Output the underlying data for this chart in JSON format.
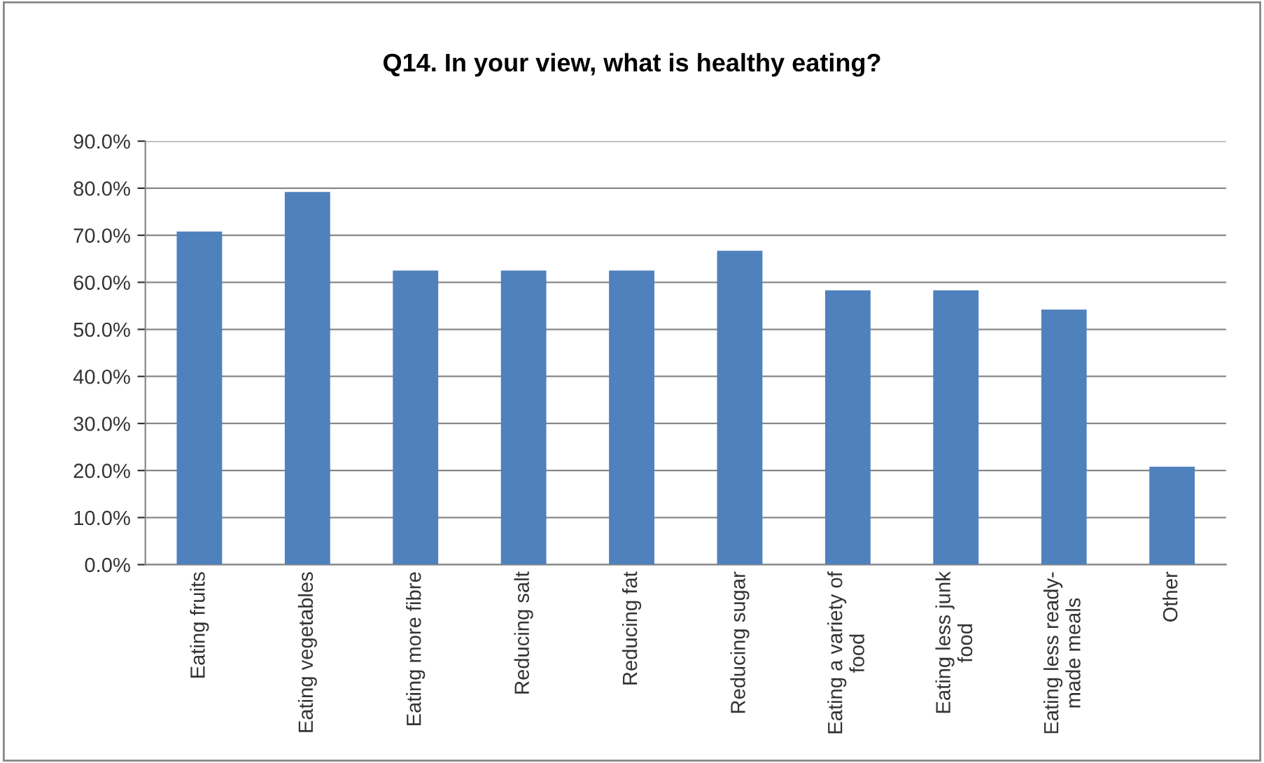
{
  "chart_data": {
    "type": "bar",
    "title": "Q14. In your view, what is healthy eating?",
    "categories": [
      "Eating fruits",
      "Eating vegetables",
      "Eating more fibre",
      "Reducing salt",
      "Reducing fat",
      "Reducing sugar",
      "Eating a variety of\nfood",
      "Eating less junk\nfood",
      "Eating less ready-\nmade meals",
      "Other"
    ],
    "values": [
      70.8,
      79.2,
      62.5,
      62.5,
      62.5,
      66.7,
      58.3,
      58.3,
      54.2,
      20.8
    ],
    "color": "#4f81bd",
    "ylim": [
      0,
      90
    ],
    "yticks": [
      {
        "value": 0,
        "label": "0.0%"
      },
      {
        "value": 10,
        "label": "10.0%"
      },
      {
        "value": 20,
        "label": "20.0%"
      },
      {
        "value": 30,
        "label": "30.0%"
      },
      {
        "value": 40,
        "label": "40.0%"
      },
      {
        "value": 50,
        "label": "50.0%"
      },
      {
        "value": 60,
        "label": "60.0%"
      },
      {
        "value": 70,
        "label": "70.0%"
      },
      {
        "value": 80,
        "label": "80.0%"
      },
      {
        "value": 90,
        "label": "90.0%"
      }
    ],
    "grid": "y",
    "legend": false
  }
}
